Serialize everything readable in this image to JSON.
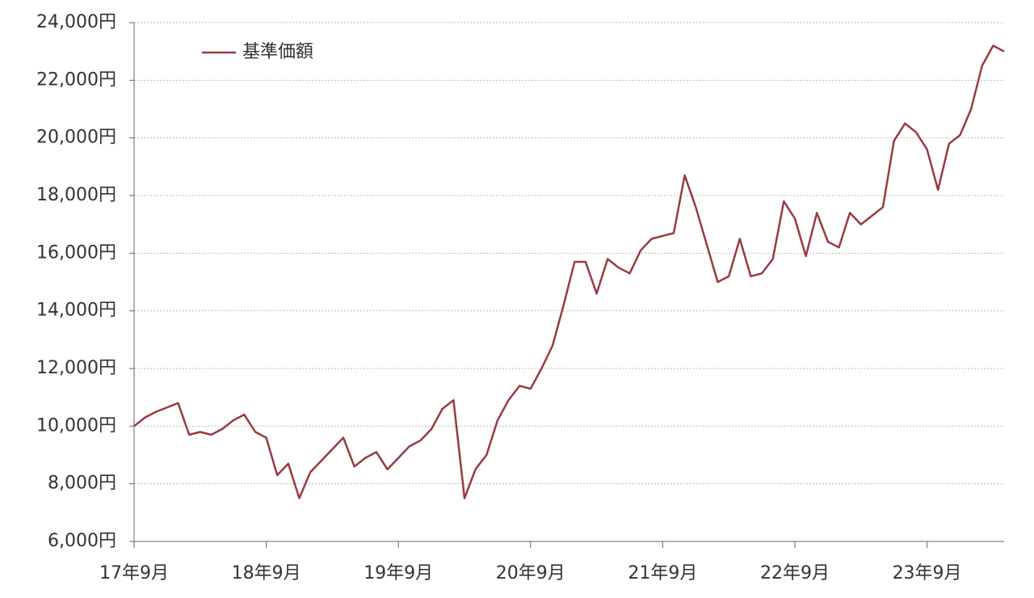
{
  "chart_data": {
    "type": "line",
    "categories": [
      "17年9月",
      null,
      null,
      null,
      null,
      null,
      null,
      null,
      null,
      null,
      null,
      null,
      "18年9月",
      null,
      null,
      null,
      null,
      null,
      null,
      null,
      null,
      null,
      null,
      null,
      "19年9月",
      null,
      null,
      null,
      null,
      null,
      null,
      null,
      null,
      null,
      null,
      null,
      "20年9月",
      null,
      null,
      null,
      null,
      null,
      null,
      null,
      null,
      null,
      null,
      null,
      "21年9月",
      null,
      null,
      null,
      null,
      null,
      null,
      null,
      null,
      null,
      null,
      null,
      "22年9月",
      null,
      null,
      null,
      null,
      null,
      null,
      null,
      null,
      null,
      null,
      null,
      "23年9月",
      null,
      null,
      null,
      null,
      null,
      null,
      null
    ],
    "series": [
      {
        "name": "基準価額",
        "color": "#993a40",
        "values": [
          10000,
          10300,
          10500,
          10650,
          10800,
          9700,
          9800,
          9700,
          9900,
          10200,
          10400,
          9800,
          9600,
          8300,
          8700,
          7500,
          8400,
          8800,
          9200,
          9600,
          8600,
          8900,
          9100,
          8500,
          8900,
          9300,
          9500,
          9900,
          10600,
          10900,
          7500,
          8500,
          9000,
          10200,
          10900,
          11400,
          11300,
          12000,
          12800,
          14200,
          15700,
          15700,
          14600,
          15800,
          15500,
          15300,
          16100,
          16500,
          16600,
          16700,
          18700,
          17600,
          16300,
          15000,
          15200,
          16500,
          15200,
          15300,
          15800,
          17800,
          17200,
          15900,
          17400,
          16400,
          16200,
          17400,
          17000,
          17300,
          17600,
          19900,
          20500,
          20200,
          19600,
          18200,
          19800,
          20100,
          21000,
          22500,
          23200,
          23000
        ]
      }
    ],
    "ylim": [
      6000,
      24000
    ],
    "yticks": [
      {
        "value": 6000,
        "label": "6,000円"
      },
      {
        "value": 8000,
        "label": "8,000円"
      },
      {
        "value": 10000,
        "label": "10,000円"
      },
      {
        "value": 12000,
        "label": "12,000円"
      },
      {
        "value": 14000,
        "label": "14,000円"
      },
      {
        "value": 16000,
        "label": "16,000円"
      },
      {
        "value": 18000,
        "label": "18,000円"
      },
      {
        "value": 20000,
        "label": "20,000円"
      },
      {
        "value": 22000,
        "label": "22,000円"
      },
      {
        "value": 24000,
        "label": "24,000円"
      }
    ],
    "grid": true,
    "legend": "upper left"
  }
}
